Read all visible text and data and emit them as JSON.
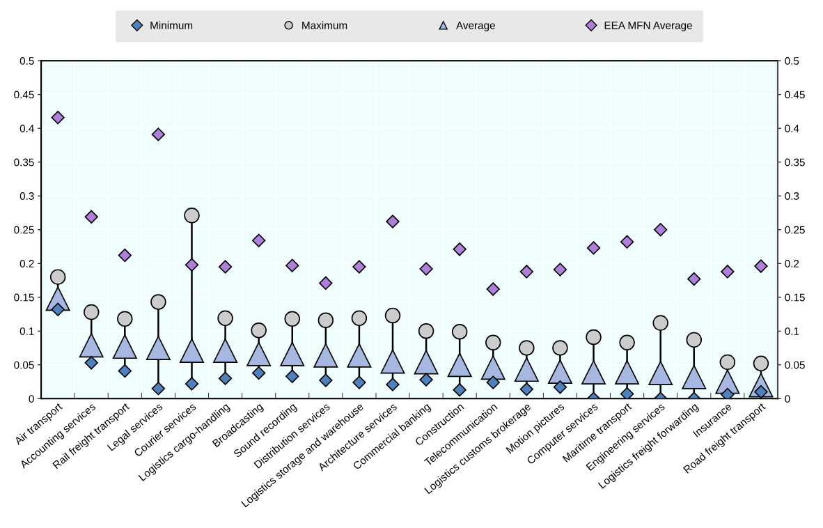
{
  "chart_data": {
    "type": "scatter",
    "categories": [
      "Air transport",
      "Accounting services",
      "Rail freight transport",
      "Legal services",
      "Courier services",
      "Logistics cargo-handling",
      "Broadcasting",
      "Sound recording",
      "Distribution services",
      "Logistics storage and warehouse",
      "Architecture services",
      "Commercial banking",
      "Construction",
      "Telecommunication",
      "Logistics customs brokerage",
      "Motion pictures",
      "Computer services",
      "Maritime transport",
      "Engineering services",
      "Logistics freight forwarding",
      "Insurance",
      "Road freight transport"
    ],
    "series": [
      {
        "name": "Minimum",
        "color": "#4f81bd",
        "marker": "diamond",
        "values": [
          0.132,
          0.053,
          0.041,
          0.015,
          0.022,
          0.03,
          0.038,
          0.033,
          0.027,
          0.024,
          0.021,
          0.028,
          0.013,
          0.024,
          0.014,
          0.017,
          0.0,
          0.007,
          0.0,
          0.0,
          0.006,
          0.01
        ]
      },
      {
        "name": "Maximum",
        "color": "#cccccc",
        "marker": "circle",
        "values": [
          0.18,
          0.128,
          0.118,
          0.143,
          0.271,
          0.119,
          0.101,
          0.118,
          0.116,
          0.119,
          0.123,
          0.1,
          0.099,
          0.083,
          0.075,
          0.075,
          0.091,
          0.083,
          0.112,
          0.087,
          0.054,
          0.052
        ]
      },
      {
        "name": "Average",
        "color": "#a6b8e2",
        "marker": "triangle",
        "values": [
          0.148,
          0.079,
          0.077,
          0.075,
          0.071,
          0.071,
          0.066,
          0.066,
          0.064,
          0.064,
          0.055,
          0.054,
          0.05,
          0.046,
          0.043,
          0.04,
          0.039,
          0.039,
          0.038,
          0.032,
          0.025,
          0.02
        ]
      },
      {
        "name": "EEA MFN Average",
        "color": "#b07fdb",
        "marker": "diamond",
        "values": [
          0.416,
          0.269,
          0.212,
          0.391,
          0.198,
          0.195,
          0.234,
          0.197,
          0.171,
          0.195,
          0.262,
          0.192,
          0.221,
          0.162,
          0.188,
          0.191,
          0.223,
          0.232,
          0.25,
          0.177,
          0.188,
          0.196
        ]
      }
    ],
    "ylim": [
      0,
      0.5
    ],
    "yticks": [
      0,
      0.05,
      0.1,
      0.15,
      0.2,
      0.25,
      0.3,
      0.35,
      0.4,
      0.45,
      0.5
    ],
    "y2lim": [
      0,
      0.5
    ],
    "y2ticks": [
      0,
      0.05,
      0.1,
      0.15,
      0.2,
      0.25,
      0.3,
      0.35,
      0.4,
      0.45,
      0.5
    ],
    "grid": true,
    "legend": "top"
  }
}
